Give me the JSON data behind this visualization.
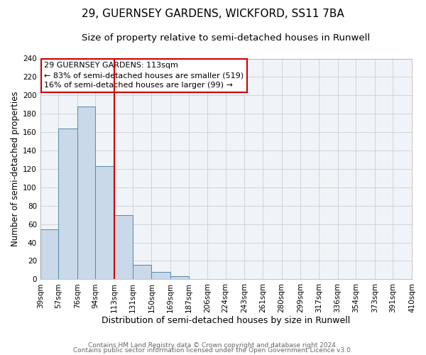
{
  "title": "29, GUERNSEY GARDENS, WICKFORD, SS11 7BA",
  "subtitle": "Size of property relative to semi-detached houses in Runwell",
  "xlabel": "Distribution of semi-detached houses by size in Runwell",
  "ylabel": "Number of semi-detached properties",
  "bin_labels": [
    "39sqm",
    "57sqm",
    "76sqm",
    "94sqm",
    "113sqm",
    "131sqm",
    "150sqm",
    "169sqm",
    "187sqm",
    "206sqm",
    "224sqm",
    "243sqm",
    "261sqm",
    "280sqm",
    "299sqm",
    "317sqm",
    "336sqm",
    "354sqm",
    "373sqm",
    "391sqm",
    "410sqm"
  ],
  "bin_edges": [
    39,
    57,
    76,
    94,
    113,
    131,
    150,
    169,
    187,
    206,
    224,
    243,
    261,
    280,
    299,
    317,
    336,
    354,
    373,
    391,
    410
  ],
  "bar_values": [
    54,
    164,
    188,
    123,
    70,
    16,
    8,
    3,
    0,
    0,
    0,
    0,
    0,
    0,
    0,
    0,
    0,
    0,
    0,
    0
  ],
  "bar_color": "#c9d9e9",
  "bar_edge_color": "#5588aa",
  "property_value": 113,
  "vline_color": "#cc0000",
  "ylim": [
    0,
    240
  ],
  "yticks": [
    0,
    20,
    40,
    60,
    80,
    100,
    120,
    140,
    160,
    180,
    200,
    220,
    240
  ],
  "annotation_title": "29 GUERNSEY GARDENS: 113sqm",
  "annotation_line1": "← 83% of semi-detached houses are smaller (519)",
  "annotation_line2": "16% of semi-detached houses are larger (99) →",
  "annotation_box_color": "#ffffff",
  "annotation_box_edge": "#cc0000",
  "footer1": "Contains HM Land Registry data © Crown copyright and database right 2024.",
  "footer2": "Contains public sector information licensed under the Open Government Licence v3.0.",
  "title_fontsize": 11,
  "subtitle_fontsize": 9.5,
  "xlabel_fontsize": 9,
  "ylabel_fontsize": 8.5,
  "tick_fontsize": 7.5,
  "annotation_fontsize": 8,
  "footer_fontsize": 6.5,
  "bg_color": "#f0f4f8"
}
